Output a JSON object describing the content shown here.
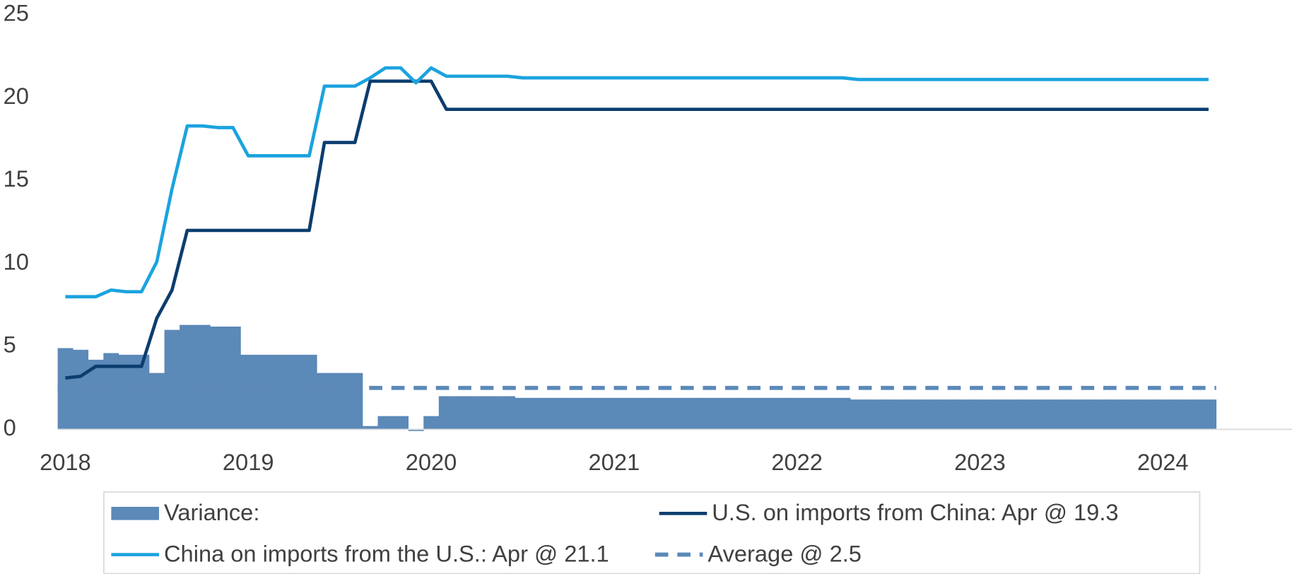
{
  "chart_data": {
    "type": "combo",
    "categories": [
      "2018",
      null,
      null,
      null,
      null,
      null,
      null,
      null,
      null,
      null,
      null,
      null,
      "2019",
      null,
      null,
      null,
      null,
      null,
      null,
      null,
      null,
      null,
      null,
      null,
      "2020",
      null,
      null,
      null,
      null,
      null,
      null,
      null,
      null,
      null,
      null,
      null,
      "2021",
      null,
      null,
      null,
      null,
      null,
      null,
      null,
      null,
      null,
      null,
      null,
      "2022",
      null,
      null,
      null,
      null,
      null,
      null,
      null,
      null,
      null,
      null,
      null,
      "2023",
      null,
      null,
      null,
      null,
      null,
      null,
      null,
      null,
      null,
      null,
      null,
      "2024",
      null,
      null,
      null
    ],
    "series": [
      {
        "name": "Variance:",
        "type": "bar",
        "color": "#5b89b8",
        "values": [
          4.9,
          4.8,
          4.2,
          4.6,
          4.5,
          4.5,
          3.4,
          6.0,
          6.3,
          6.3,
          6.2,
          6.2,
          4.5,
          4.5,
          4.5,
          4.5,
          4.5,
          3.4,
          3.4,
          3.4,
          0.2,
          0.8,
          0.8,
          -0.1,
          0.8,
          2.0,
          2.0,
          2.0,
          2.0,
          2.0,
          1.9,
          1.9,
          1.9,
          1.9,
          1.9,
          1.9,
          1.9,
          1.9,
          1.9,
          1.9,
          1.9,
          1.9,
          1.9,
          1.9,
          1.9,
          1.9,
          1.9,
          1.9,
          1.9,
          1.9,
          1.9,
          1.9,
          1.8,
          1.8,
          1.8,
          1.8,
          1.8,
          1.8,
          1.8,
          1.8,
          1.8,
          1.8,
          1.8,
          1.8,
          1.8,
          1.8,
          1.8,
          1.8,
          1.8,
          1.8,
          1.8,
          1.8,
          1.8,
          1.8,
          1.8,
          1.8
        ]
      },
      {
        "name": "U.S. on imports from China: Apr @ 19.3",
        "type": "line",
        "color": "#0b3d6e",
        "values": [
          3.1,
          3.2,
          3.8,
          3.8,
          3.8,
          3.8,
          6.7,
          8.4,
          12.0,
          12.0,
          12.0,
          12.0,
          12.0,
          12.0,
          12.0,
          12.0,
          12.0,
          17.3,
          17.3,
          17.3,
          21.0,
          21.0,
          21.0,
          21.0,
          21.0,
          19.3,
          19.3,
          19.3,
          19.3,
          19.3,
          19.3,
          19.3,
          19.3,
          19.3,
          19.3,
          19.3,
          19.3,
          19.3,
          19.3,
          19.3,
          19.3,
          19.3,
          19.3,
          19.3,
          19.3,
          19.3,
          19.3,
          19.3,
          19.3,
          19.3,
          19.3,
          19.3,
          19.3,
          19.3,
          19.3,
          19.3,
          19.3,
          19.3,
          19.3,
          19.3,
          19.3,
          19.3,
          19.3,
          19.3,
          19.3,
          19.3,
          19.3,
          19.3,
          19.3,
          19.3,
          19.3,
          19.3,
          19.3,
          19.3,
          19.3,
          19.3
        ]
      },
      {
        "name": "China on imports from the U.S.: Apr @ 21.1",
        "type": "line",
        "color": "#1ba3de",
        "values": [
          8.0,
          8.0,
          8.0,
          8.4,
          8.3,
          8.3,
          10.1,
          14.5,
          18.3,
          18.3,
          18.2,
          18.2,
          16.5,
          16.5,
          16.5,
          16.5,
          16.5,
          20.7,
          20.7,
          20.7,
          21.2,
          21.8,
          21.8,
          20.9,
          21.8,
          21.3,
          21.3,
          21.3,
          21.3,
          21.3,
          21.2,
          21.2,
          21.2,
          21.2,
          21.2,
          21.2,
          21.2,
          21.2,
          21.2,
          21.2,
          21.2,
          21.2,
          21.2,
          21.2,
          21.2,
          21.2,
          21.2,
          21.2,
          21.2,
          21.2,
          21.2,
          21.2,
          21.1,
          21.1,
          21.1,
          21.1,
          21.1,
          21.1,
          21.1,
          21.1,
          21.1,
          21.1,
          21.1,
          21.1,
          21.1,
          21.1,
          21.1,
          21.1,
          21.1,
          21.1,
          21.1,
          21.1,
          21.1,
          21.1,
          21.1,
          21.1
        ]
      }
    ],
    "average": {
      "name": "Average @ 2.5",
      "value": 2.5,
      "color": "#5b89b8"
    },
    "ylim": [
      0,
      25
    ],
    "yticks": [
      0,
      5,
      10,
      15,
      20,
      25
    ],
    "grid": false
  }
}
